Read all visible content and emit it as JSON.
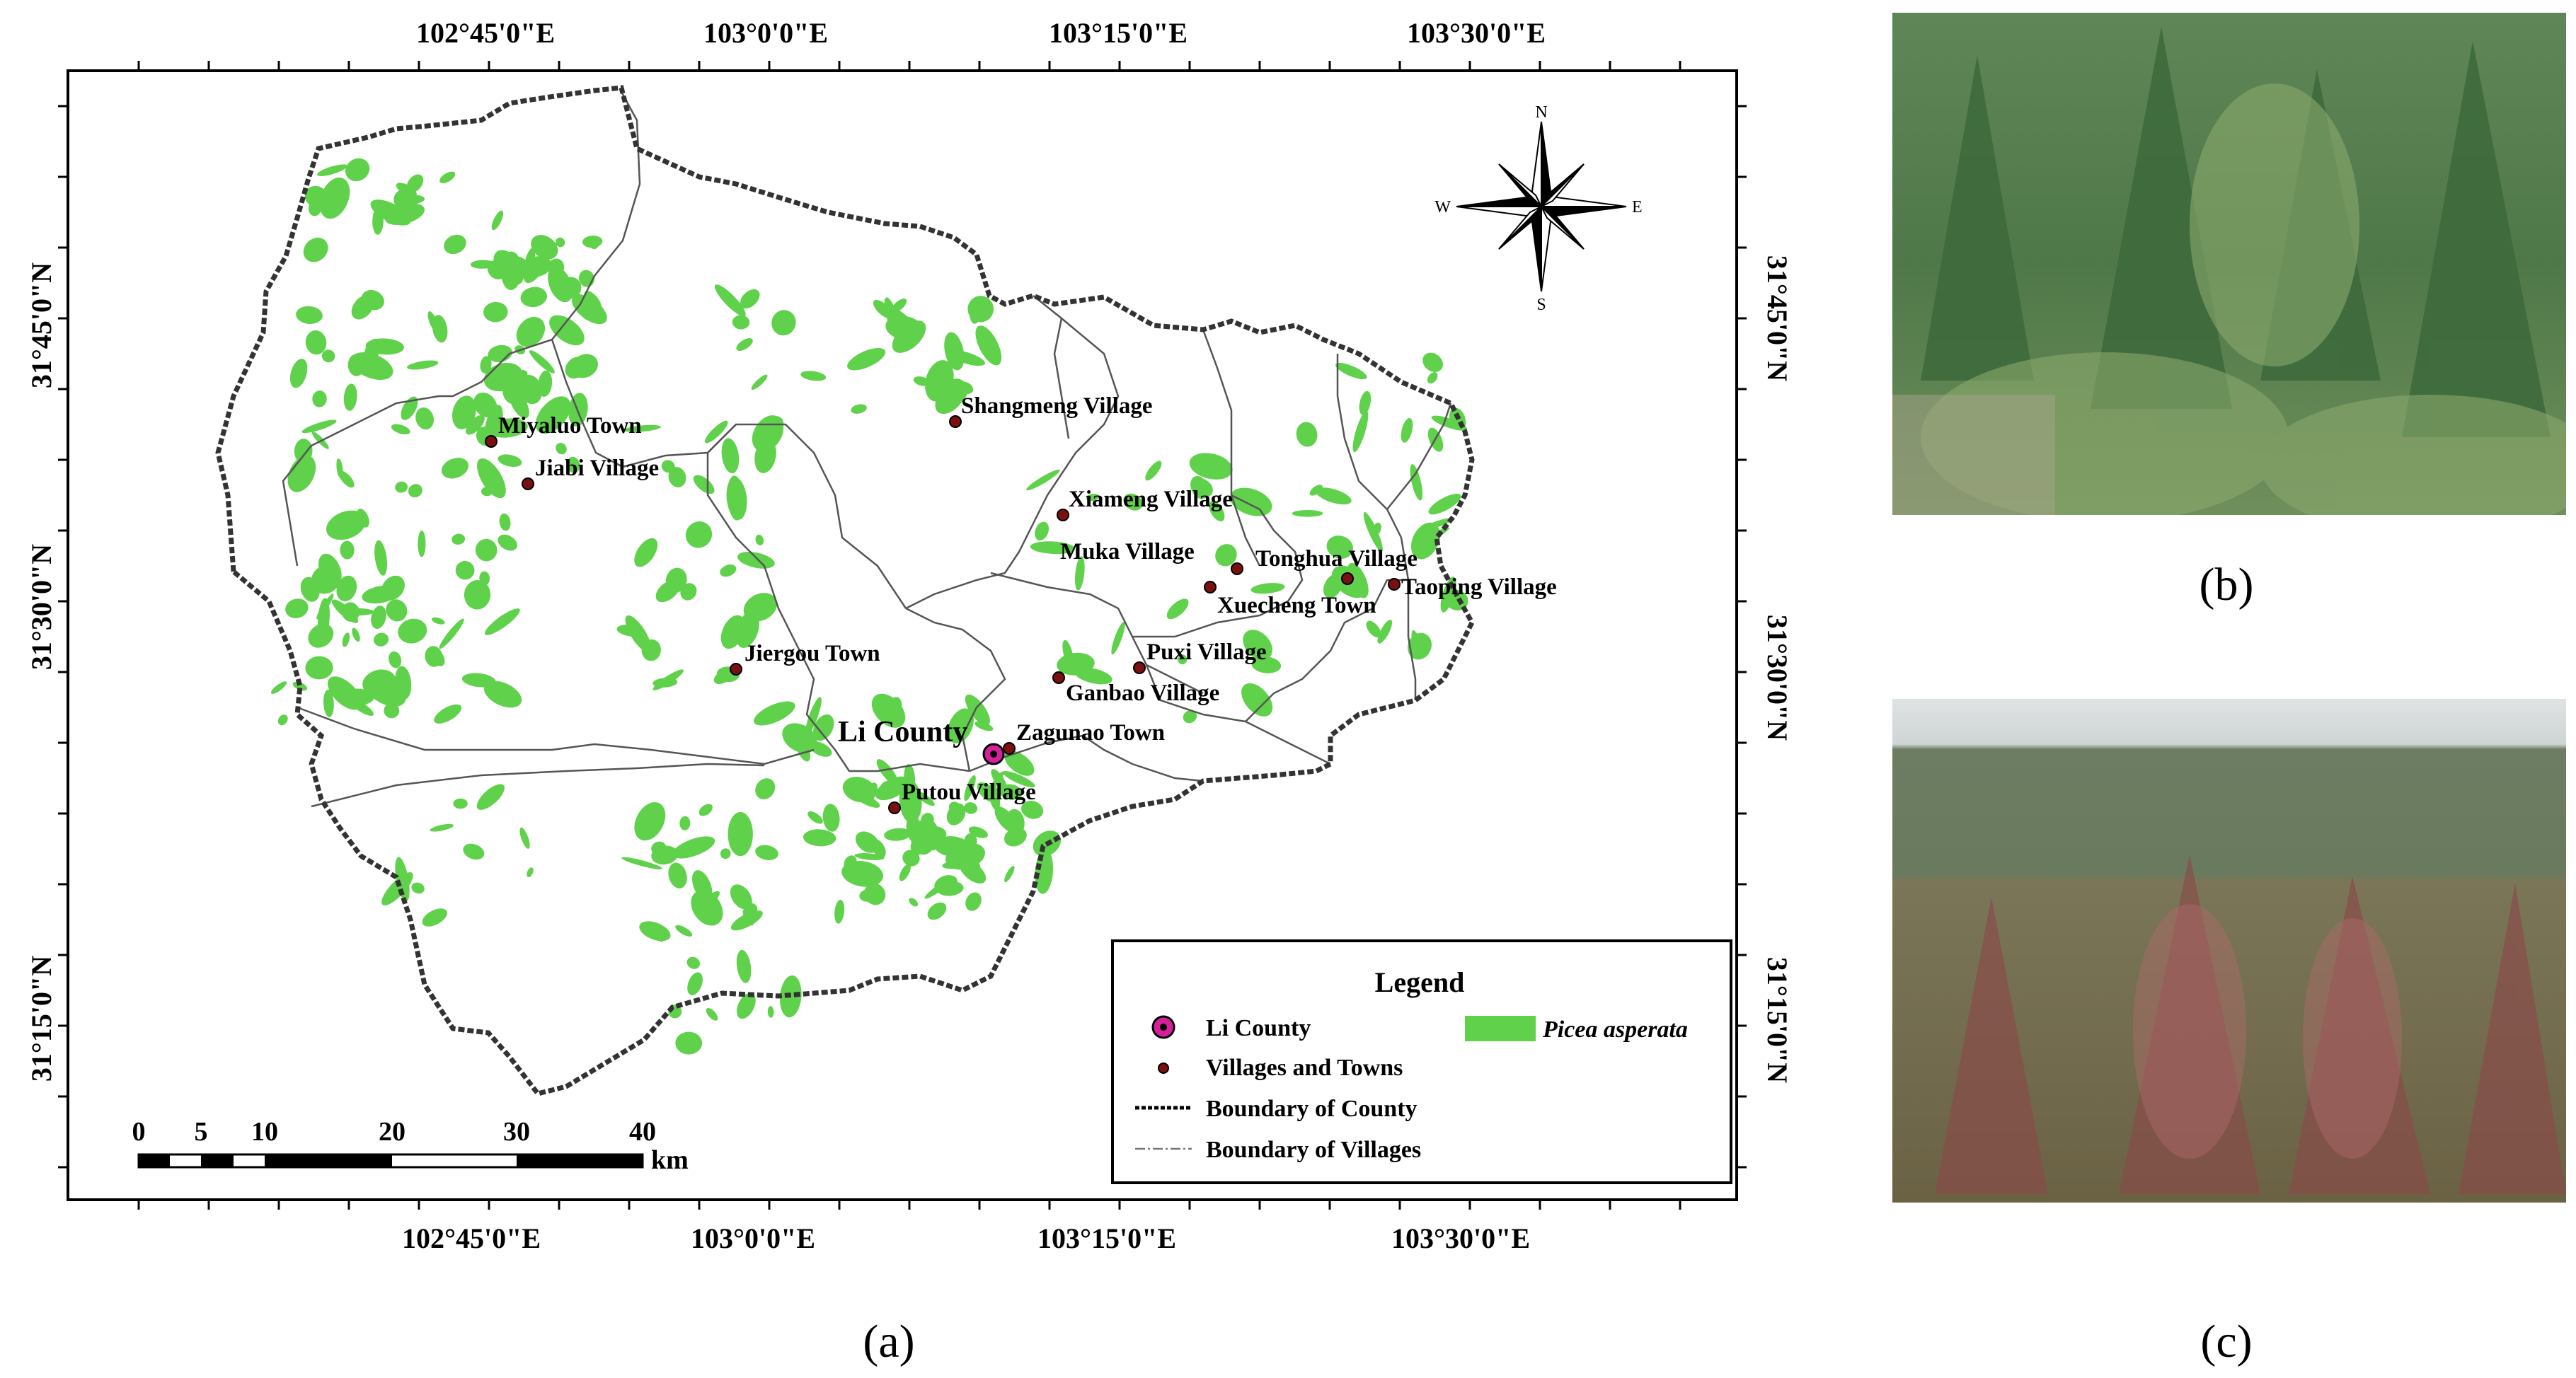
{
  "map": {
    "top_axis_labels": [
      "102°45'0\"E",
      "103°0'0\"E",
      "103°15'0\"E",
      "103°30'0\"E"
    ],
    "bottom_axis_labels": [
      "102°45'0\"E",
      "103°0'0\"E",
      "103°15'0\"E",
      "103°30'0\"E"
    ],
    "left_axis_labels": [
      "31°45'0\"N",
      "31°30'0\"N",
      "31°15'0\"N"
    ],
    "right_axis_labels": [
      "31°45'0\"N",
      "31°30'0\"N",
      "31°15'0\"N"
    ],
    "compass": {
      "n": "N",
      "s": "S",
      "e": "E",
      "w": "W"
    },
    "county_seat": "Li County",
    "places": [
      "Miyaluo Town",
      "Jiabi Village",
      "Shangmeng Village",
      "Xiameng Village",
      "Muka Village",
      "Tonghua Village",
      "Xuecheng Town",
      "Taoping Village",
      "Jiergou Town",
      "Puxi Village",
      "Ganbao Village",
      "Zagunao Town",
      "Putou Village"
    ],
    "legend": {
      "title": "Legend",
      "county": "Li County",
      "villages": "Villages and Towns",
      "picea": "Picea asperata",
      "county_boundary": "Boundary of County",
      "village_boundary": "Boundary of Villages"
    },
    "scale_bar": {
      "ticks": [
        "0",
        "5",
        "10",
        "20",
        "30",
        "40"
      ],
      "unit": "km"
    },
    "colors": {
      "forest": "#5fd14a",
      "place_dot": "#7a1010",
      "county_seat": "#d61f9a"
    }
  },
  "panel_labels": {
    "a": "(a)",
    "b": "(b)",
    "c": "(c)"
  }
}
